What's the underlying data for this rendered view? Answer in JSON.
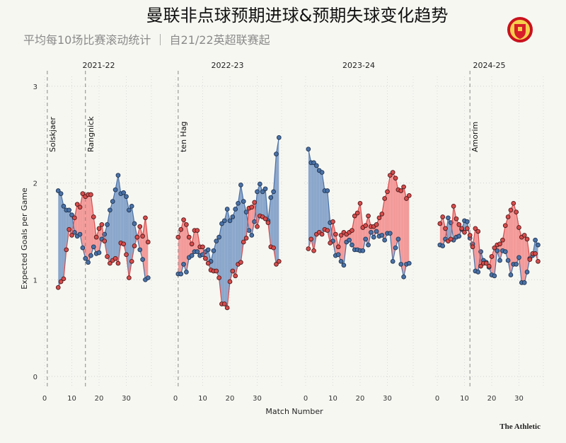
{
  "header": {
    "title": "曼联非点球预期进球&预期失球变化趋势",
    "subtitle": "平均每10场比赛滚动统计 ｜ 自21/22英超联赛起",
    "logo": "Manchester United crest"
  },
  "footer": {
    "brand": "The Athletic"
  },
  "colors": {
    "xg": "#4a72a8",
    "xg_fill": "#7e9dc7",
    "xga": "#d94c4c",
    "xga_fill": "#f29090"
  },
  "chart_data": {
    "type": "line",
    "xlabel": "Match Number",
    "ylabel": "Expected Goals per Game",
    "ylim": [
      0,
      3
    ],
    "yticks": [
      "0",
      "1",
      "2",
      "3"
    ],
    "xticks": [
      "0",
      "10",
      "20",
      "30"
    ],
    "grid": true,
    "series_names": [
      "Non-penalty xG",
      "Non-penalty xGA"
    ],
    "panels": [
      {
        "season": "2021-22",
        "start_match": 5,
        "managers": [
          {
            "name": "Solskjaer",
            "match": 1
          },
          {
            "name": "Rangnick",
            "match": 15
          }
        ],
        "xg": [
          1.92,
          1.89,
          1.76,
          1.72,
          1.72,
          1.67,
          1.49,
          1.45,
          1.47,
          1.33,
          1.22,
          1.18,
          1.25,
          1.34,
          1.27,
          1.28,
          1.42,
          1.47,
          1.57,
          1.72,
          1.81,
          1.93,
          2.08,
          1.89,
          1.9,
          1.86,
          1.72,
          1.76,
          1.58,
          1.44,
          1.31,
          1.21,
          1.0,
          1.02
        ],
        "xga": [
          0.92,
          0.98,
          1.01,
          1.31,
          1.52,
          1.46,
          1.64,
          1.78,
          1.75,
          1.89,
          1.86,
          1.88,
          1.88,
          1.65,
          1.44,
          1.53,
          1.57,
          1.4,
          1.24,
          1.17,
          1.2,
          1.22,
          1.17,
          1.38,
          1.37,
          1.26,
          1.02,
          1.19,
          1.35,
          1.44,
          1.55,
          1.45,
          1.64,
          1.39
        ]
      },
      {
        "season": "2022-23",
        "start_match": 1,
        "managers": [
          {
            "name": "ten Hag",
            "match": 1
          }
        ],
        "xg": [
          1.06,
          1.06,
          1.16,
          1.08,
          1.23,
          1.25,
          1.29,
          1.29,
          1.25,
          1.26,
          1.29,
          1.31,
          1.19,
          1.3,
          1.4,
          1.44,
          1.58,
          1.61,
          1.73,
          1.61,
          1.65,
          1.73,
          1.79,
          1.98,
          1.81,
          1.7,
          1.51,
          1.46,
          1.6,
          1.91,
          1.99,
          1.91,
          1.94,
          1.61,
          1.85,
          1.91,
          2.3,
          2.47
        ],
        "xga": [
          1.44,
          1.52,
          1.62,
          1.57,
          1.44,
          1.37,
          1.51,
          1.51,
          1.34,
          1.34,
          1.22,
          1.17,
          1.1,
          1.09,
          1.09,
          1.02,
          0.75,
          0.75,
          0.71,
          0.98,
          1.09,
          1.04,
          1.16,
          1.18,
          1.39,
          1.43,
          1.74,
          1.75,
          1.8,
          1.55,
          1.66,
          1.65,
          1.63,
          1.59,
          1.34,
          1.33,
          1.16,
          1.19
        ]
      },
      {
        "season": "2023-24",
        "start_match": 1,
        "managers": [],
        "xg": [
          2.35,
          2.21,
          2.21,
          2.18,
          2.13,
          2.11,
          1.92,
          1.92,
          1.59,
          1.4,
          1.25,
          1.26,
          1.19,
          1.15,
          1.39,
          1.41,
          1.36,
          1.31,
          1.31,
          1.3,
          1.3,
          1.42,
          1.36,
          1.49,
          1.44,
          1.5,
          1.45,
          1.46,
          1.41,
          1.48,
          1.48,
          1.19,
          1.33,
          1.42,
          1.16,
          1.03,
          1.16,
          1.17
        ],
        "xga": [
          1.32,
          1.42,
          1.3,
          1.47,
          1.49,
          1.47,
          1.52,
          1.51,
          1.38,
          1.6,
          1.47,
          1.34,
          1.46,
          1.49,
          1.47,
          1.49,
          1.51,
          1.66,
          1.69,
          1.79,
          1.54,
          1.56,
          1.66,
          1.55,
          1.55,
          1.57,
          1.64,
          1.68,
          1.84,
          1.91,
          2.08,
          2.11,
          2.05,
          1.93,
          1.92,
          1.96,
          1.84,
          1.87
        ]
      },
      {
        "season": "2024-25",
        "start_match": 1,
        "managers": [
          {
            "name": "Amorim",
            "match": 12
          }
        ],
        "xg": [
          1.36,
          1.35,
          1.42,
          1.64,
          1.59,
          1.41,
          1.44,
          1.45,
          1.52,
          1.61,
          1.6,
          1.43,
          1.37,
          1.09,
          1.08,
          1.29,
          1.2,
          1.18,
          1.13,
          1.05,
          1.04,
          1.3,
          1.2,
          1.3,
          1.29,
          1.2,
          1.05,
          1.16,
          1.16,
          1.23,
          0.97,
          0.97,
          1.08,
          1.22,
          1.25,
          1.41,
          1.36
        ],
        "xga": [
          1.58,
          1.65,
          1.53,
          1.4,
          1.42,
          1.76,
          1.63,
          1.57,
          1.53,
          1.49,
          1.53,
          1.46,
          1.34,
          1.53,
          1.5,
          1.14,
          1.17,
          1.17,
          1.14,
          1.24,
          1.33,
          1.36,
          1.37,
          1.41,
          1.56,
          1.65,
          1.72,
          1.79,
          1.7,
          1.54,
          1.44,
          1.46,
          1.42,
          1.21,
          1.27,
          1.27,
          1.19
        ]
      }
    ]
  }
}
